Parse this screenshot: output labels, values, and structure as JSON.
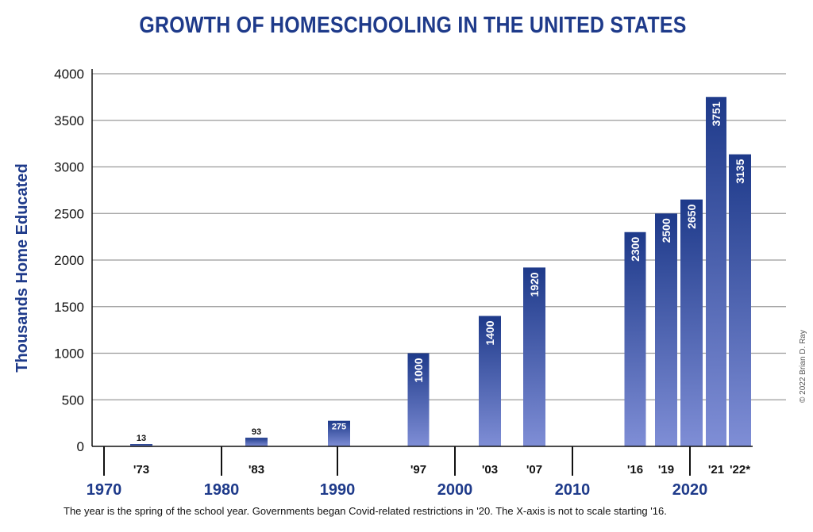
{
  "chart_data": {
    "type": "bar",
    "title": "GROWTH OF HOMESCHOOLING IN THE UNITED STATES",
    "ylabel": "Thousands Home Educated",
    "xlabel": "",
    "ylim": [
      0,
      4000
    ],
    "yticks": [
      "0",
      "500",
      "1000",
      "1500",
      "2000",
      "2500",
      "3000",
      "3500",
      "4000"
    ],
    "grid": true,
    "categories": [
      "'73",
      "'83",
      "'90",
      "'97",
      "'03",
      "'07",
      "'16",
      "'19",
      "'20",
      "'21",
      "'22*"
    ],
    "category_labels": [
      "'73",
      "'83",
      "",
      "'97",
      "'03",
      "'07",
      "'16",
      "'19",
      "",
      "'21",
      "'22*"
    ],
    "values": [
      13,
      93,
      275,
      1000,
      1400,
      1920,
      2300,
      2500,
      2650,
      3751,
      3135
    ],
    "value_labels": [
      "13",
      "93",
      "275",
      "1000",
      "1400",
      "1920",
      "2300",
      "2500",
      "2650",
      "3751",
      "3135"
    ],
    "decades": [
      "1970",
      "1980",
      "1990",
      "2000",
      "2010",
      "2020"
    ],
    "bar_color_top": "#1e3a8a",
    "bar_color_bottom": "#7f8ed6",
    "text_color": "#1e3a8a"
  },
  "footnote": "The year is the spring of the school year. Governments began Covid-related restrictions in '20. The X-axis is not to scale starting '16.",
  "copyright": "© 2022 Brian D. Ray"
}
